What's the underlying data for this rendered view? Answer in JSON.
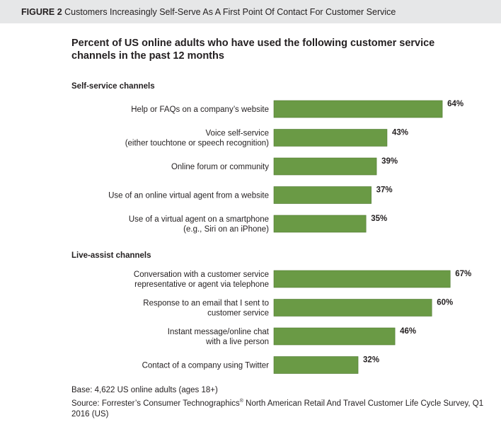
{
  "figure_header": {
    "label": "FIGURE 2",
    "text": "Customers Increasingly Self-Serve As A First Point Of Contact For Customer Service"
  },
  "title": "Percent of US online adults who have used the following customer service channels in the past 12 months",
  "colors": {
    "bar": "#6a9a45",
    "bar_border": "#4f7a31",
    "header_bg": "#e6e7e8"
  },
  "chart_data": {
    "type": "bar",
    "orientation": "horizontal",
    "unit": "%",
    "xlim": [
      0,
      100
    ],
    "grid": false,
    "groups": [
      {
        "name": "Self-service channels",
        "categories": [
          [
            "Help or FAQs on a company’s website"
          ],
          [
            "Voice self-service",
            "(either touchtone or speech recognition)"
          ],
          [
            "Online forum or community"
          ],
          [
            "Use of an online virtual agent from a website"
          ],
          [
            "Use of a virtual agent on a smartphone",
            "(e.g., Siri on an iPhone)"
          ]
        ],
        "values": [
          64,
          43,
          39,
          37,
          35
        ],
        "labels": [
          "64%",
          "43%",
          "39%",
          "37%",
          "35%"
        ]
      },
      {
        "name": "Live-assist channels",
        "categories": [
          [
            "Conversation with a customer service",
            "representative or agent via telephone"
          ],
          [
            "Response to an email that I sent to",
            "customer service"
          ],
          [
            "Instant message/online chat",
            "with a live person"
          ],
          [
            "Contact of a company using Twitter"
          ]
        ],
        "values": [
          67,
          60,
          46,
          32
        ],
        "labels": [
          "67%",
          "60%",
          "46%",
          "32%"
        ]
      }
    ]
  },
  "base_note": "Base: 4,622 US online adults (ages 18+)",
  "source_note": {
    "pre": "Source: Forrester’s Consumer Technographics",
    "sup": "®",
    "post": " North American Retail And Travel Customer Life Cycle Survey, Q1 2016 (US)"
  }
}
